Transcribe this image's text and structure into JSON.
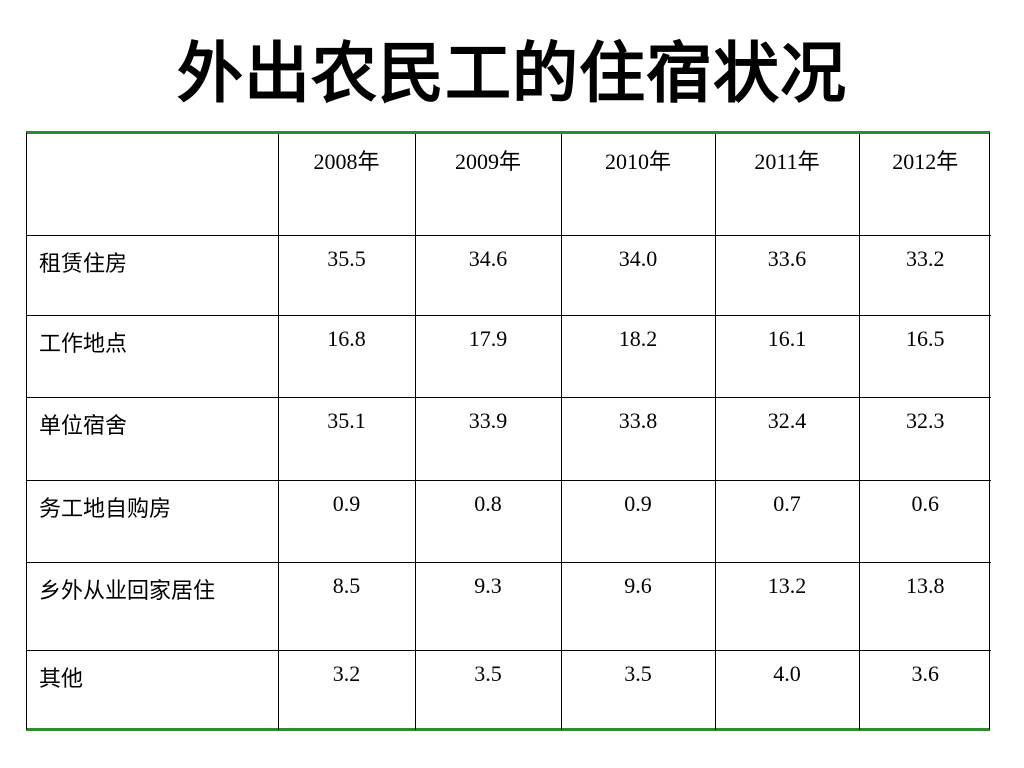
{
  "title": "外出农民工的住宿状况",
  "table": {
    "corner": "",
    "columns": [
      "2008年",
      "2009年",
      "2010年",
      "2011年",
      "2012年"
    ],
    "rows": [
      {
        "label": "租赁住房",
        "values": [
          "35.5",
          "34.6",
          "34.0",
          "33.6",
          "33.2"
        ]
      },
      {
        "label": "工作地点",
        "values": [
          "16.8",
          "17.9",
          "18.2",
          "16.1",
          "16.5"
        ]
      },
      {
        "label": "单位宿舍",
        "values": [
          "35.1",
          "33.9",
          "33.8",
          "32.4",
          "32.3"
        ]
      },
      {
        "label": "务工地自购房",
        "values": [
          "0.9",
          "0.8",
          "0.9",
          "0.7",
          "0.6"
        ]
      },
      {
        "label": "乡外从业回家居住",
        "values": [
          "8.5",
          "9.3",
          "9.6",
          "13.2",
          "13.8"
        ]
      },
      {
        "label": "其他",
        "values": [
          "3.2",
          "3.5",
          "3.5",
          "4.0",
          "3.6"
        ]
      }
    ]
  },
  "colors": {
    "table_rule": "#2e8b2e",
    "grid": "#000000",
    "text": "#000000",
    "background": "#ffffff"
  }
}
